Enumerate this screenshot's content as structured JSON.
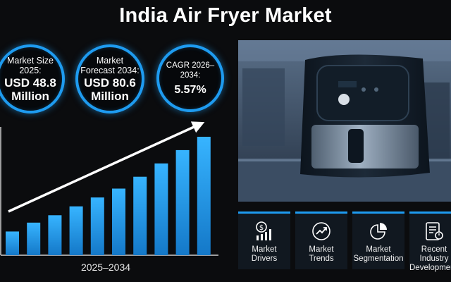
{
  "title": "India Air Fryer Market",
  "stats": [
    {
      "label": "Market Size 2025:",
      "value": "USD 48.8 Million"
    },
    {
      "label": "Market Forecast 2034:",
      "value": "USD 80.6 Million"
    },
    {
      "label": "CAGR 2026–2034:",
      "value": "5.57%"
    }
  ],
  "chart_data": {
    "type": "bar",
    "xlabel": "2025–2034",
    "values": [
      16,
      22,
      27,
      33,
      39,
      45,
      53,
      62,
      71,
      80
    ],
    "bar_color": "#1e9bf0",
    "trend_arrow": true
  },
  "cards": [
    {
      "label": "Market\nDrivers",
      "icon": "dollar-chart-icon"
    },
    {
      "label": "Market\nTrends",
      "icon": "trend-line-icon"
    },
    {
      "label": "Market\nSegmentation",
      "icon": "pie-chart-icon"
    },
    {
      "label": "Recent\nIndustry\nDevelopments",
      "icon": "news-report-icon"
    }
  ],
  "colors": {
    "accent": "#1e9bf0",
    "background": "#0b0c0e"
  }
}
